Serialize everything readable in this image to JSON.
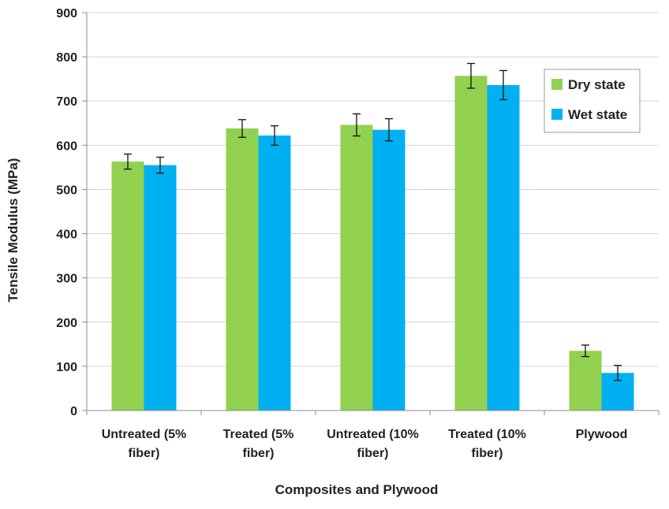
{
  "chart_data": {
    "type": "bar",
    "title": "",
    "xlabel": "Composites and Plywood",
    "ylabel": "Tensile Modulus (MPa)",
    "ylim": [
      0,
      900
    ],
    "yticks": [
      0,
      100,
      200,
      300,
      400,
      500,
      600,
      700,
      800,
      900
    ],
    "grid": "horizontal",
    "legend_position": "top-right",
    "categories": [
      [
        "Untreated (5%",
        "fiber)"
      ],
      [
        "Treated (5%",
        "fiber)"
      ],
      [
        "Untreated (10%",
        "fiber)"
      ],
      [
        "Treated (10%",
        "fiber)"
      ],
      [
        "Plywood"
      ]
    ],
    "series": [
      {
        "name": "Dry state",
        "color": "#92D050",
        "values": [
          563,
          638,
          646,
          757,
          135
        ],
        "errors": [
          17,
          20,
          25,
          28,
          13
        ]
      },
      {
        "name": "Wet state",
        "color": "#00B0F0",
        "values": [
          555,
          622,
          635,
          736,
          85
        ],
        "errors": [
          18,
          22,
          25,
          33,
          17
        ]
      }
    ]
  }
}
